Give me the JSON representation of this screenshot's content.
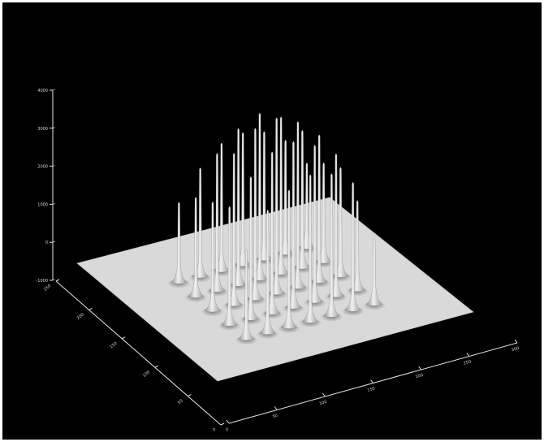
{
  "chart_data": {
    "type": "surface",
    "title": "",
    "xlabel": "",
    "ylabel": "",
    "zlabel": "",
    "background": "#000000",
    "surface_color": "#d9d9d9",
    "axis_color": "#e6e6e6",
    "x_axis": {
      "range": [
        0,
        300
      ],
      "ticks": [
        "0",
        "50",
        "100",
        "150",
        "200",
        "250",
        "300"
      ]
    },
    "y_axis": {
      "range": [
        0,
        250
      ],
      "ticks": [
        "0",
        "50",
        "100",
        "150",
        "200",
        "250"
      ]
    },
    "z_axis": {
      "range": [
        -1000,
        4000
      ],
      "ticks": [
        "-1000",
        "0",
        "1000",
        "2000",
        "3000",
        "4000"
      ]
    },
    "grid": false,
    "legend": "none",
    "peaks": {
      "description": "grid of sharp peaks on a flat plane",
      "rows": 5,
      "cols": 7,
      "x": [
        70,
        95,
        120,
        145,
        170,
        195,
        220
      ],
      "y": [
        55,
        85,
        115,
        145,
        175
      ],
      "heights": [
        [
          1900,
          2600,
          2900,
          3100,
          3000,
          2700,
          1400
        ],
        [
          2500,
          3000,
          3400,
          3500,
          3300,
          3000,
          1900
        ],
        [
          2300,
          3200,
          3600,
          3700,
          3500,
          3100,
          2300
        ],
        [
          2100,
          2900,
          3300,
          3500,
          3300,
          2900,
          2100
        ],
        [
          1700,
          2300,
          2700,
          2800,
          2700,
          2400,
          1800
        ]
      ]
    }
  }
}
